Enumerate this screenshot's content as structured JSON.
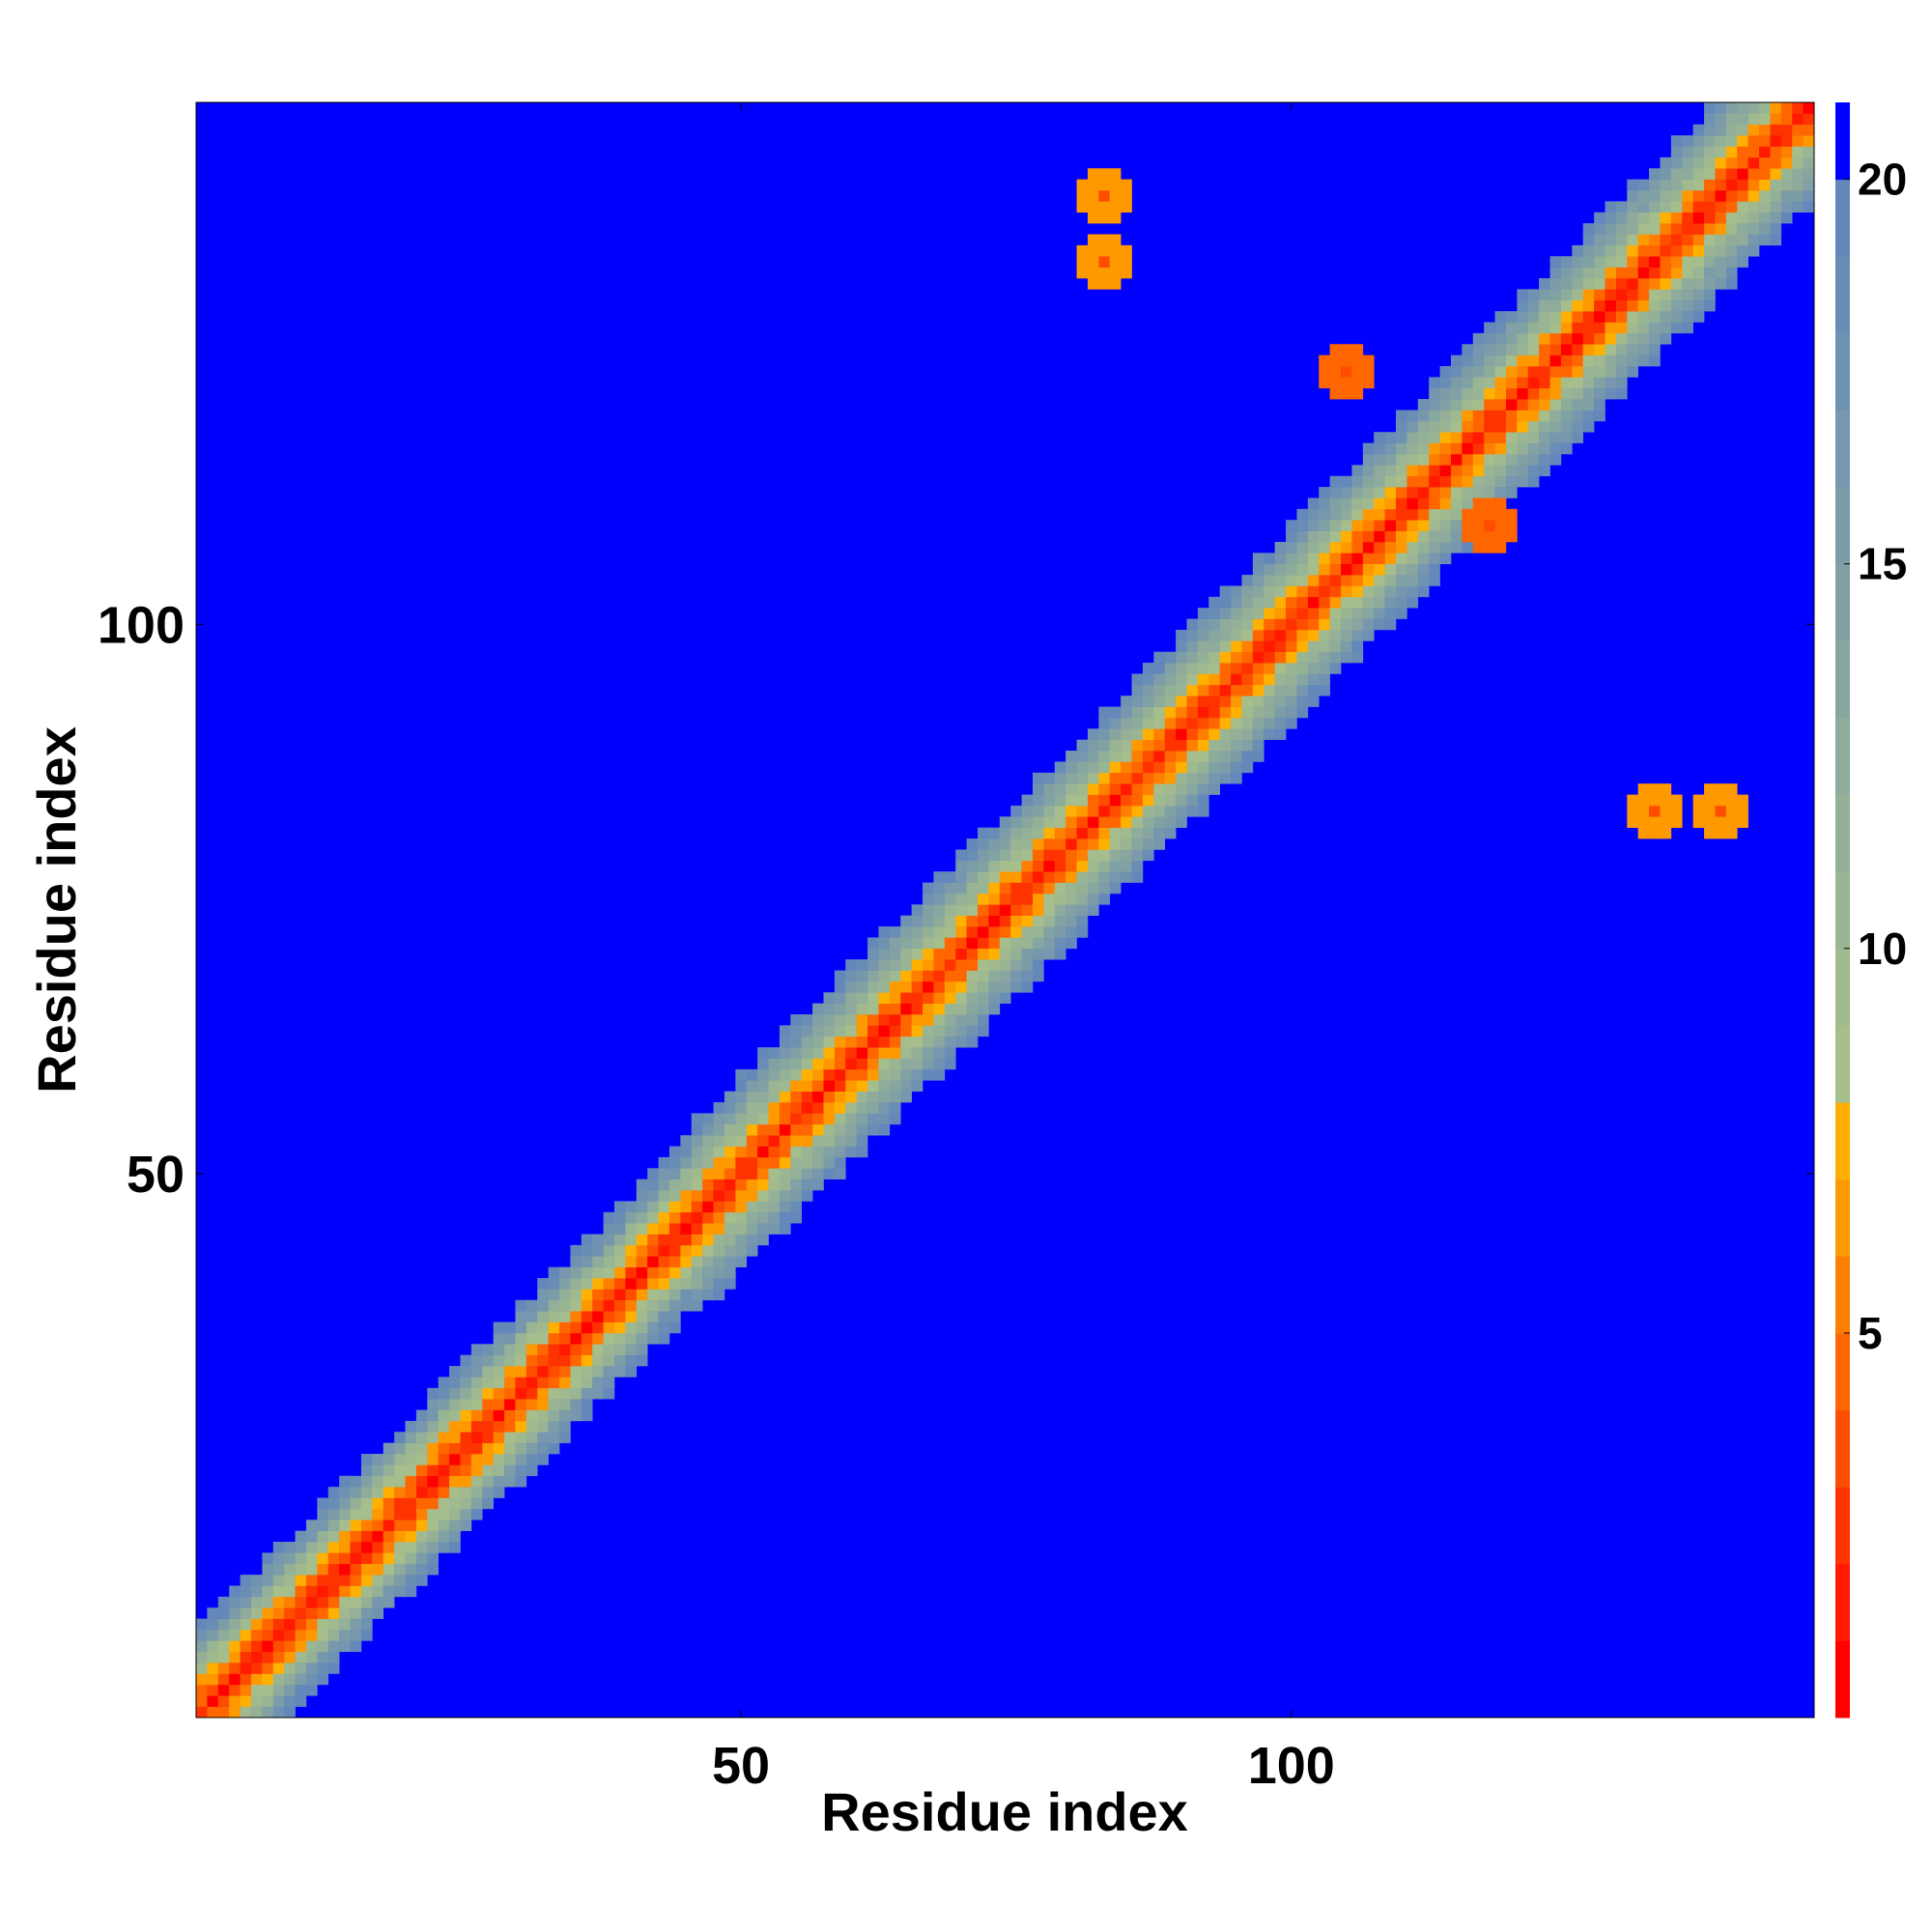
{
  "chart_data": {
    "type": "heatmap",
    "title": "",
    "xlabel": "Residue index",
    "ylabel": "Residue index",
    "xlim": [
      0.5,
      147.5
    ],
    "ylim": [
      0.5,
      147.5
    ],
    "x_ticks": [
      50,
      100
    ],
    "y_ticks": [
      50,
      100
    ],
    "x_tick_labels": [
      "50",
      "100"
    ],
    "y_tick_labels": [
      "50",
      "100"
    ],
    "grid": false,
    "matrix": "symmetric residue-residue distance map (Angstrom)",
    "colorbar": {
      "range": [
        0,
        21
      ],
      "ticks": [
        5,
        10,
        15,
        20
      ],
      "tick_labels": [
        "5",
        "10",
        "15",
        "20"
      ],
      "bands": [
        {
          "from": 0,
          "to": 1,
          "color": "#ff0000"
        },
        {
          "from": 1,
          "to": 2,
          "color": "#ff1a00"
        },
        {
          "from": 2,
          "to": 3,
          "color": "#ff3300"
        },
        {
          "from": 3,
          "to": 4,
          "color": "#ff4d00"
        },
        {
          "from": 4,
          "to": 5,
          "color": "#ff6600"
        },
        {
          "from": 5,
          "to": 6,
          "color": "#ff7f00"
        },
        {
          "from": 6,
          "to": 7,
          "color": "#ff9900"
        },
        {
          "from": 7,
          "to": 8,
          "color": "#ffb000"
        },
        {
          "from": 8,
          "to": 9,
          "color": "#a6be8c"
        },
        {
          "from": 9,
          "to": 10,
          "color": "#a0b98e"
        },
        {
          "from": 10,
          "to": 11,
          "color": "#9ab593"
        },
        {
          "from": 11,
          "to": 12,
          "color": "#94b097"
        },
        {
          "from": 12,
          "to": 13,
          "color": "#8eab9b"
        },
        {
          "from": 13,
          "to": 14,
          "color": "#88a6a0"
        },
        {
          "from": 14,
          "to": 15,
          "color": "#82a1a4"
        },
        {
          "from": 15,
          "to": 16,
          "color": "#7c9ca8"
        },
        {
          "from": 16,
          "to": 17,
          "color": "#7697ad"
        },
        {
          "from": 17,
          "to": 18,
          "color": "#7092b1"
        },
        {
          "from": 18,
          "to": 19,
          "color": "#6a8db5"
        },
        {
          "from": 19,
          "to": 20,
          "color": "#6488ba"
        },
        {
          "from": 20,
          "to": 21,
          "color": "#0000ff"
        }
      ]
    },
    "diagonal": {
      "from": 1,
      "to": 147,
      "color": "#ff0000"
    },
    "contact_patches": [
      {
        "x": 83,
        "y": 139,
        "value": 6,
        "color": "#ff9900"
      },
      {
        "x": 139,
        "y": 83,
        "value": 6,
        "color": "#ff9900"
      },
      {
        "x": 133,
        "y": 83,
        "value": 6,
        "color": "#ff9900"
      },
      {
        "x": 83,
        "y": 133,
        "value": 6,
        "color": "#ff9900"
      },
      {
        "x": 105,
        "y": 123,
        "value": 5,
        "color": "#ff6600"
      },
      {
        "x": 118,
        "y": 109,
        "value": 5,
        "color": "#ff6600"
      }
    ],
    "background_color": "#0000ff"
  }
}
